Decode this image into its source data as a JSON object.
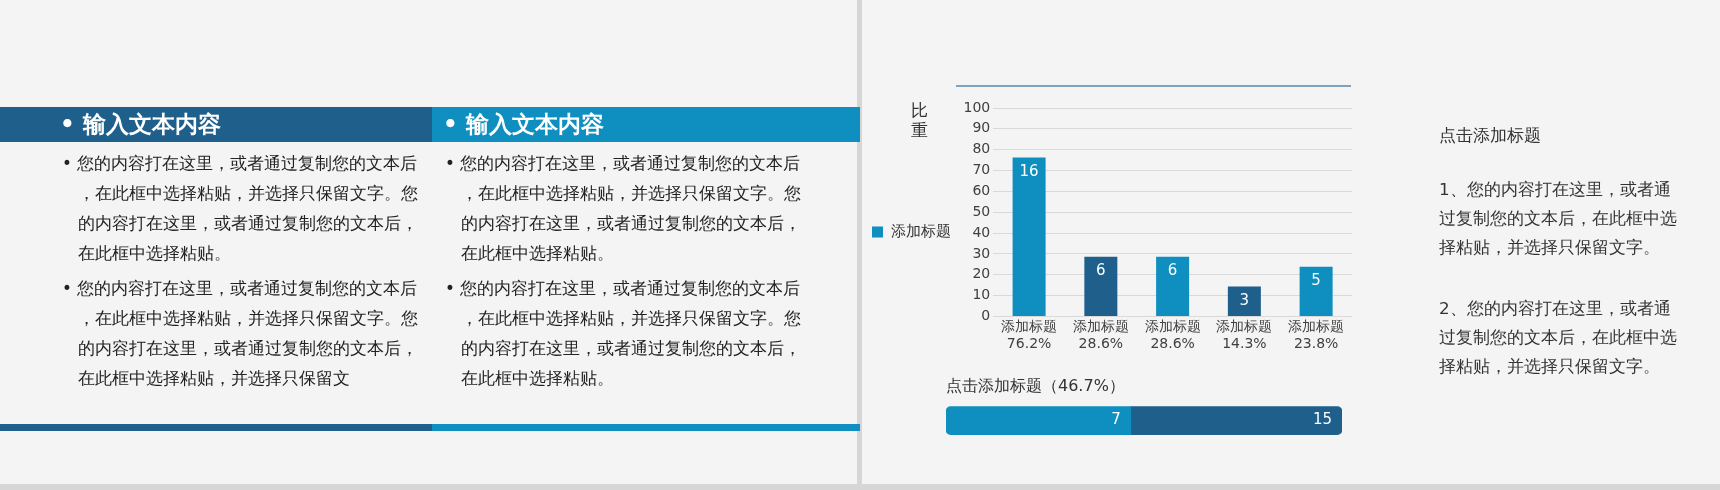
{
  "chart_data": [
    {
      "type": "other",
      "title": "• 输入文本内容",
      "annotations": [
        "• 您的内容打在这里，或者通过复制您的文本后，在此框中选择粘贴，并选择只保留文字。您的内容打在这里，或者通过复制您的文本后，在此框中选择粘贴。",
        "• 您的内容打在这里，或者通过复制您的文本后，在此框中选择粘贴，并选择只保留文字。您的内容打在这里，或者通过复制您的文本后，在此框中选择粘贴，并选择只保留文"
      ]
    },
    {
      "type": "other",
      "title": "• 输入文本内容",
      "annotations": [
        "• 您的内容打在这里，或者通过复制您的文本后，在此框中选择粘贴，并选择只保留文字。您的内容打在这里，或者通过复制您的文本后，在此框中选择粘贴。",
        "• 您的内容打在这里，或者通过复制您的文本后，在此框中选择粘贴，并选择只保留文字。您的内容打在这里，或者通过复制您的文本后，在此框中选择粘贴。"
      ]
    },
    {
      "type": "bar",
      "ylabel": "比重",
      "categories": [
        "添加标题\n76.2%",
        "添加标题\n28.6%",
        "添加标题\n28.6%",
        "添加标题\n14.3%",
        "添加标题\n23.8%"
      ],
      "series": [
        {
          "name": "添加标题",
          "color": "#0e8fc0",
          "colors": [
            "#0e8fc0",
            "#1f5f8b",
            "#0e8fc0",
            "#1f5f8b",
            "#0e8fc0"
          ],
          "values": [
            76.2,
            28.6,
            28.6,
            14.3,
            23.8
          ]
        }
      ],
      "annotations": [
        {
          "text": "16",
          "x": "添加标题\n76.2%",
          "y": 76.2
        },
        {
          "text": "6",
          "x": "添加标题\n28.6%",
          "y": 28.6
        },
        {
          "text": "6",
          "y": 28.6
        },
        {
          "text": "3",
          "x": "添加标题\n14.3%",
          "y": 14.3
        },
        {
          "text": "5",
          "x": "添加标题\n23.8%",
          "y": 23.8
        }
      ],
      "ylim": [
        0,
        100
      ],
      "yticks": [
        0,
        10,
        20,
        30,
        40,
        50,
        60,
        70,
        80,
        90,
        100
      ],
      "grid": "y",
      "legend": "left"
    },
    {
      "type": "bar",
      "title": "点击添加标题（46.7%）",
      "orientation": "horizontal",
      "stacked": true,
      "categories": [
        null
      ],
      "series": [
        {
          "color": "#0e8fc0",
          "values": [
            7
          ],
          "value_labels": [
            "7"
          ]
        },
        {
          "color": "#1f5f8b",
          "values": [
            8
          ]
        }
      ],
      "totals": [
        "15"
      ],
      "xlim": [
        0,
        15
      ],
      "tick_labels": false
    },
    {
      "type": "other",
      "title": "点击添加标题",
      "annotations": [
        "1、您的内容打在这里，或者通过复制您的文本后，在此框中选择粘贴，并选择只保留文字。",
        "2、您的内容打在这里，或者通过复制您的文本后，在此框中选择粘贴，并选择只保留文字。"
      ]
    }
  ]
}
